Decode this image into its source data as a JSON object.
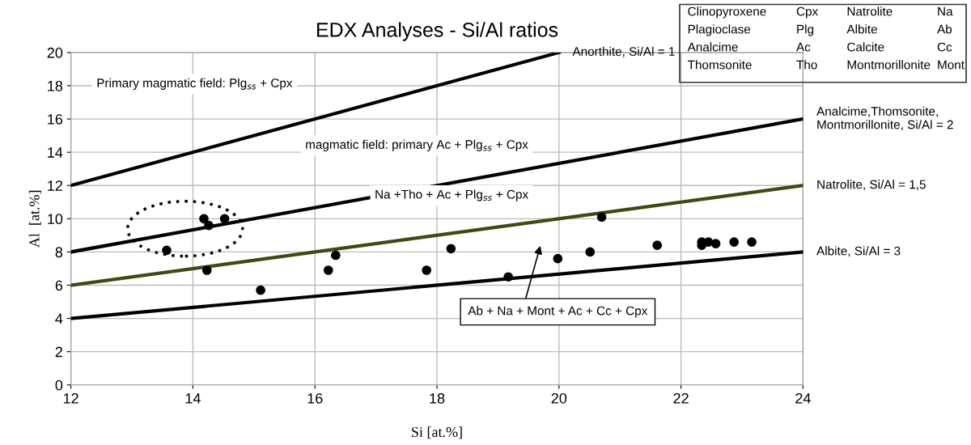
{
  "chart_data": {
    "type": "scatter",
    "title": "EDX Analyses - Si/Al ratios",
    "xlabel": "Si [at.%]",
    "ylabel": "Al  [at.%]",
    "xlim": [
      12,
      24
    ],
    "xticks": [
      12,
      14,
      16,
      18,
      20,
      22,
      24
    ],
    "ylim": [
      0,
      20
    ],
    "yticks": [
      0,
      2,
      4,
      6,
      8,
      10,
      12,
      14,
      16,
      18,
      20
    ],
    "grid": true,
    "series": [
      {
        "color": "#000000",
        "marker": "circle",
        "x": [
          13.57,
          14.18,
          14.26,
          14.52,
          14.23,
          15.11,
          16.22,
          16.34,
          17.83,
          18.23,
          19.17,
          19.98,
          20.51,
          20.7,
          21.61,
          22.34,
          22.34,
          22.45,
          22.57,
          22.87,
          23.16
        ],
        "values": [
          8.1,
          10.0,
          9.6,
          10.0,
          6.9,
          5.7,
          6.9,
          7.8,
          6.9,
          8.2,
          6.5,
          7.6,
          8.0,
          10.1,
          8.4,
          8.6,
          8.4,
          8.6,
          8.5,
          8.6,
          8.6
        ]
      },
      {
        "type": "line",
        "name": "Anorthite, Si/Al = 1",
        "color": "#000000",
        "marker": "none",
        "line_style": "solid",
        "x": [
          12,
          20
        ],
        "values": [
          12,
          20
        ]
      },
      {
        "type": "line",
        "name": "Analcime,Thomsonite,\nMontmorillonite, Si/Al = 2",
        "color": "#000000",
        "marker": "none",
        "line_style": "solid",
        "x": [
          12,
          24
        ],
        "values": [
          8,
          16
        ]
      },
      {
        "type": "line",
        "name": "Natrolite, Si/Al = 1,5",
        "color": "#3f4a10",
        "marker": "none",
        "line_style": "solid",
        "x": [
          12,
          24
        ],
        "values": [
          6,
          12
        ]
      },
      {
        "type": "line",
        "name": "Albite, Si/Al = 3",
        "color": "#000000",
        "marker": "none",
        "line_style": "solid",
        "x": [
          12,
          24
        ],
        "values": [
          4,
          8
        ]
      }
    ],
    "annotations": [
      "Primary magmatic field: Plg$_{ss}$ + Cpx",
      "magmatic field: primary Ac + Plg$_{ss}$ + Cpx",
      "Na +Tho + Ac + Plg$_{ss}$ + Cpx",
      "Ab + Na + Mont + Ac + Cc + Cpx",
      "Clinopyroxene",
      "Cpx",
      "Natrolite",
      "Na",
      "Plagioclase",
      "Plg",
      "Albite",
      "Ab",
      "Analcime",
      "Ac",
      "Calcite",
      "Cc",
      "Thomsonite",
      "Tho",
      "Montmorillonite",
      "Mont"
    ]
  }
}
